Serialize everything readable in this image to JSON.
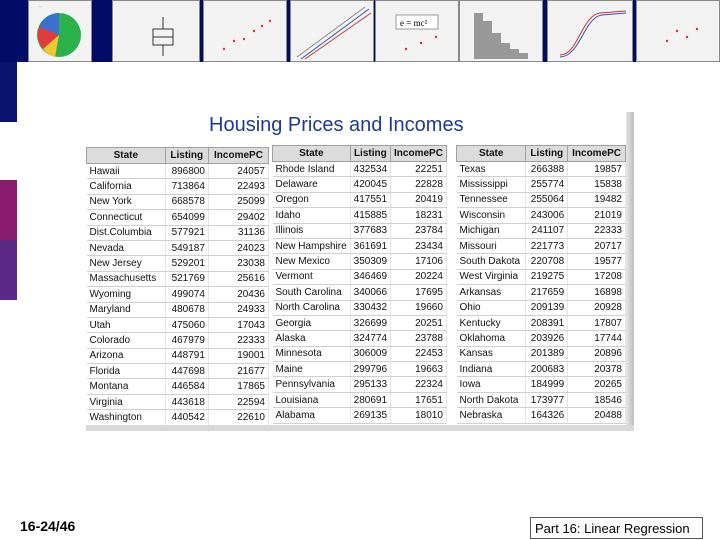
{
  "slide": {
    "title": "Housing Prices and Incomes",
    "number": "16-24/46",
    "footer": "Part 16: Linear Regression"
  },
  "thumbnails": [
    {
      "name": "pie-chart-thumbnail"
    },
    {
      "name": "boxplot-thumbnail"
    },
    {
      "name": "scatterplot-thumbnail"
    },
    {
      "name": "regression-lines-thumbnail"
    },
    {
      "name": "equation-scatter-thumbnail",
      "equation": "e = mc²"
    },
    {
      "name": "histogram-thumbnail"
    },
    {
      "name": "cumulative-curve-thumbnail"
    },
    {
      "name": "residual-plot-thumbnail"
    }
  ],
  "tables": [
    {
      "headers": [
        "State",
        "Listing",
        "IncomePC"
      ],
      "rows": [
        [
          "Hawaii",
          "896800",
          "24057"
        ],
        [
          "California",
          "713864",
          "22493"
        ],
        [
          "New York",
          "668578",
          "25099"
        ],
        [
          "Connecticut",
          "654099",
          "29402"
        ],
        [
          "Dist.Columbia",
          "577921",
          "31136"
        ],
        [
          "Nevada",
          "549187",
          "24023"
        ],
        [
          "New Jersey",
          "529201",
          "23038"
        ],
        [
          "Massachusetts",
          "521769",
          "25616"
        ],
        [
          "Wyoming",
          "499074",
          "20436"
        ],
        [
          "Maryland",
          "480678",
          "24933"
        ],
        [
          "Utah",
          "475060",
          "17043"
        ],
        [
          "Colorado",
          "467979",
          "22333"
        ],
        [
          "Arizona",
          "448791",
          "19001"
        ],
        [
          "Florida",
          "447698",
          "21677"
        ],
        [
          "Montana",
          "446584",
          "17865"
        ],
        [
          "Virginia",
          "443618",
          "22594"
        ],
        [
          "Washington",
          "440542",
          "22610"
        ]
      ]
    },
    {
      "headers": [
        "State",
        "Listing",
        "IncomePC"
      ],
      "rows": [
        [
          "Rhode Island",
          "432534",
          "22251"
        ],
        [
          "Delaware",
          "420045",
          "22828"
        ],
        [
          "Oregon",
          "417551",
          "20419"
        ],
        [
          "Idaho",
          "415885",
          "18231"
        ],
        [
          "Illinois",
          "377683",
          "23784"
        ],
        [
          "New Hampshire",
          "361691",
          "23434"
        ],
        [
          "New Mexico",
          "350309",
          "17106"
        ],
        [
          "Vermont",
          "346469",
          "20224"
        ],
        [
          "South Carolina",
          "340066",
          "17695"
        ],
        [
          "North Carolina",
          "330432",
          "19660"
        ],
        [
          "Georgia",
          "326699",
          "20251"
        ],
        [
          "Alaska",
          "324774",
          "23788"
        ],
        [
          "Minnesota",
          "306009",
          "22453"
        ],
        [
          "Maine",
          "299796",
          "19663"
        ],
        [
          "Pennsylvania",
          "295133",
          "22324"
        ],
        [
          "Louisiana",
          "280691",
          "17651"
        ],
        [
          "Alabama",
          "269135",
          "18010"
        ]
      ]
    },
    {
      "headers": [
        "State",
        "Listing",
        "IncomePC"
      ],
      "rows": [
        [
          "Texas",
          "266388",
          "19857"
        ],
        [
          "Mississippi",
          "255774",
          "15838"
        ],
        [
          "Tennessee",
          "255064",
          "19482"
        ],
        [
          "Wisconsin",
          "243006",
          "21019"
        ],
        [
          "Michigan",
          "241107",
          "22333"
        ],
        [
          "Missouri",
          "221773",
          "20717"
        ],
        [
          "South Dakota",
          "220708",
          "19577"
        ],
        [
          "West Virginia",
          "219275",
          "17208"
        ],
        [
          "Arkansas",
          "217659",
          "16898"
        ],
        [
          "Ohio",
          "209139",
          "20928"
        ],
        [
          "Kentucky",
          "208391",
          "17807"
        ],
        [
          "Oklahoma",
          "203926",
          "17744"
        ],
        [
          "Kansas",
          "201389",
          "20896"
        ],
        [
          "Indiana",
          "200683",
          "20378"
        ],
        [
          "Iowa",
          "184999",
          "20265"
        ],
        [
          "North Dakota",
          "173977",
          "18546"
        ],
        [
          "Nebraska",
          "164326",
          "20488"
        ]
      ]
    }
  ],
  "colors": {
    "top_band": "#000c66",
    "title": "#1f3a8f",
    "left_bar": [
      "#000c66",
      "#1a1a8a",
      "#9b1b6e",
      "#6a2a80",
      "#1e1e9a"
    ]
  }
}
